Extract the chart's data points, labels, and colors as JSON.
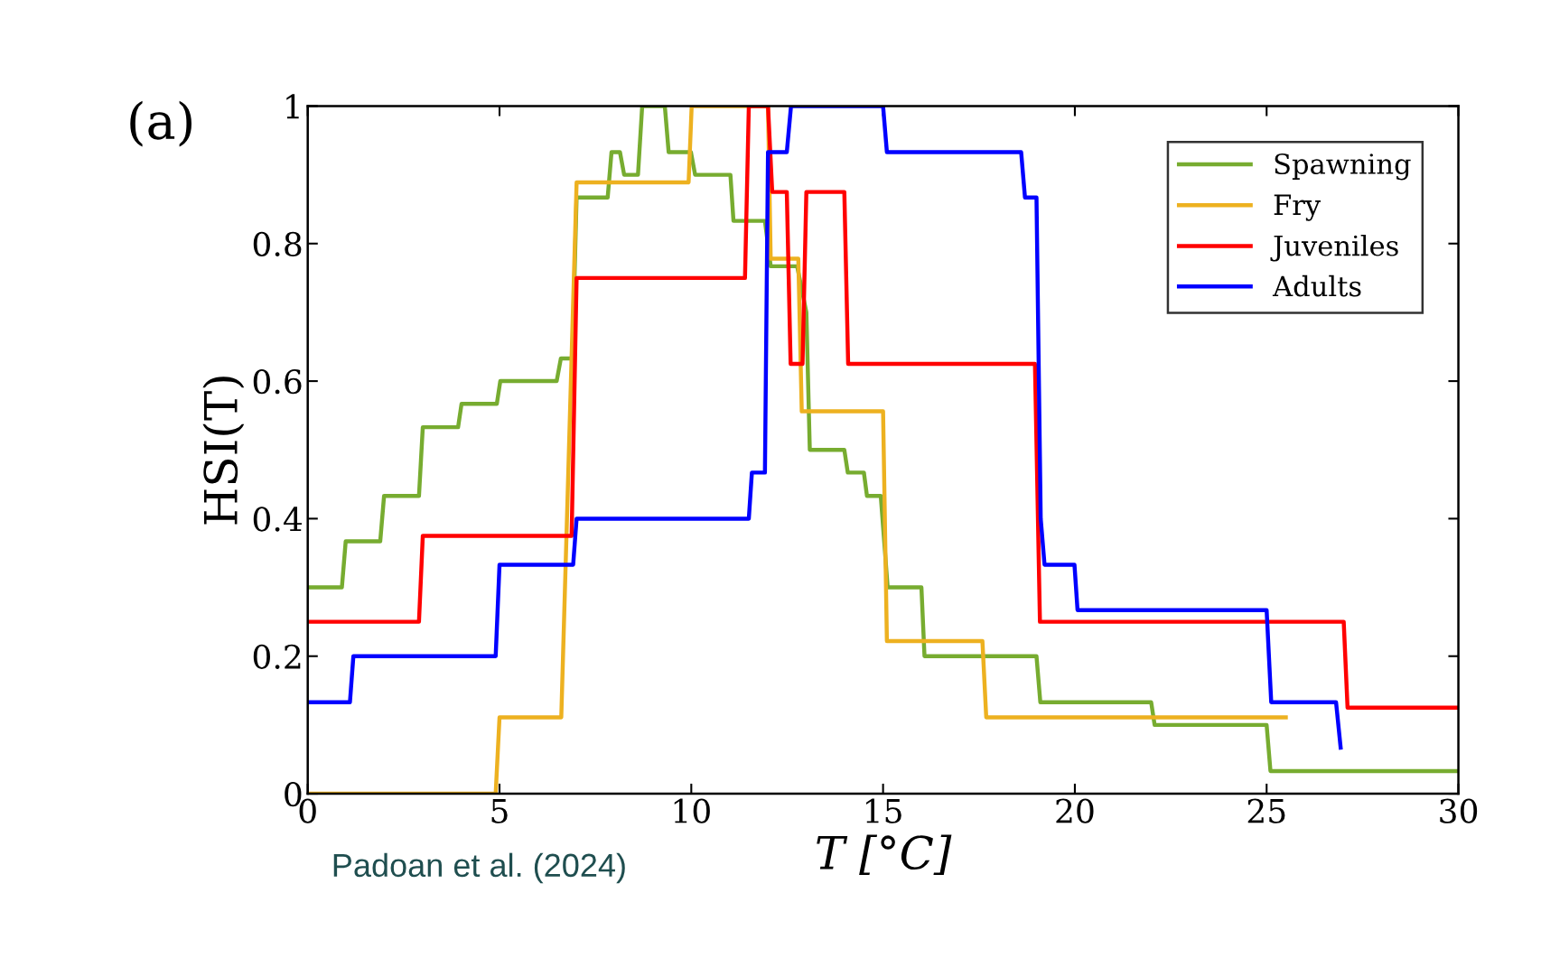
{
  "chart_data": {
    "type": "line",
    "xlabel": "T [°C]",
    "ylabel": "HSI(T)",
    "annotations": [
      "(a)",
      "Padoan et al. (2024)"
    ],
    "xlim": [
      0,
      30
    ],
    "xticks": [
      0,
      5,
      10,
      15,
      20,
      25,
      30
    ],
    "ylim": [
      0,
      1
    ],
    "yticks": [
      0,
      0.2,
      0.4,
      0.6,
      0.8,
      1
    ],
    "grid": false,
    "legend": "top right",
    "marker": "none",
    "line_style": "solid",
    "series": [
      {
        "name": "Spawning",
        "color": "#77ac30",
        "x": [
          0,
          0.89,
          0.99,
          1.89,
          1.99,
          2.9,
          3.0,
          3.92,
          4.01,
          4.93,
          5.02,
          6.49,
          6.6,
          6.9,
          7.01,
          7.82,
          7.92,
          8.14,
          8.25,
          8.61,
          8.72,
          9.31,
          9.41,
          9.99,
          10.1,
          11.02,
          11.1,
          11.92,
          12.07,
          12.76,
          13.0,
          13.09,
          13.99,
          14.08,
          14.5,
          14.58,
          14.94,
          15.12,
          16.0,
          16.08,
          19.0,
          19.1,
          21.99,
          22.08,
          25.0,
          25.1,
          30
        ],
        "values": [
          0.3,
          0.3,
          0.367,
          0.367,
          0.433,
          0.433,
          0.533,
          0.533,
          0.567,
          0.567,
          0.6,
          0.6,
          0.633,
          0.633,
          0.867,
          0.867,
          0.933,
          0.933,
          0.9,
          0.9,
          1,
          1,
          0.933,
          0.933,
          0.9,
          0.9,
          0.833,
          0.833,
          0.767,
          0.767,
          0.7,
          0.5,
          0.5,
          0.467,
          0.467,
          0.433,
          0.433,
          0.3,
          0.3,
          0.2,
          0.2,
          0.133,
          0.133,
          0.1,
          0.1,
          0.033,
          0.033
        ]
      },
      {
        "name": "Fry",
        "color": "#edb120",
        "x": [
          0,
          4.9,
          5.0,
          6.61,
          7.01,
          9.93,
          10.01,
          12.0,
          12.07,
          12.79,
          12.88,
          15.0,
          15.1,
          17.59,
          17.69,
          25.5
        ],
        "values": [
          0,
          0,
          0.111,
          0.111,
          0.889,
          0.889,
          1,
          1,
          0.778,
          0.778,
          0.556,
          0.556,
          0.222,
          0.222,
          0.111,
          0.111
        ]
      },
      {
        "name": "Juveniles",
        "color": "#ff0000",
        "x": [
          0,
          2.9,
          3.0,
          6.88,
          7.01,
          11.4,
          11.5,
          12.0,
          12.11,
          12.49,
          12.59,
          12.9,
          13.0,
          13.99,
          14.09,
          18.96,
          19.09,
          27.01,
          27.11,
          30
        ],
        "values": [
          0.25,
          0.25,
          0.375,
          0.375,
          0.75,
          0.75,
          1,
          1,
          0.875,
          0.875,
          0.625,
          0.625,
          0.875,
          0.875,
          0.625,
          0.625,
          0.25,
          0.25,
          0.125,
          0.125
        ]
      },
      {
        "name": "Adults",
        "color": "#0000ff",
        "x": [
          0,
          1.1,
          1.19,
          4.9,
          5.0,
          6.92,
          7.01,
          11.5,
          11.58,
          11.92,
          12.0,
          12.49,
          12.6,
          15.0,
          15.1,
          18.6,
          18.7,
          19.0,
          19.11,
          19.21,
          19.99,
          20.07,
          25.0,
          25.12,
          26.81,
          26.93
        ],
        "values": [
          0.133,
          0.133,
          0.2,
          0.2,
          0.333,
          0.333,
          0.4,
          0.4,
          0.467,
          0.467,
          0.933,
          0.933,
          1,
          1,
          0.933,
          0.933,
          0.867,
          0.867,
          0.4,
          0.333,
          0.333,
          0.267,
          0.267,
          0.133,
          0.133,
          0.067
        ]
      }
    ]
  }
}
